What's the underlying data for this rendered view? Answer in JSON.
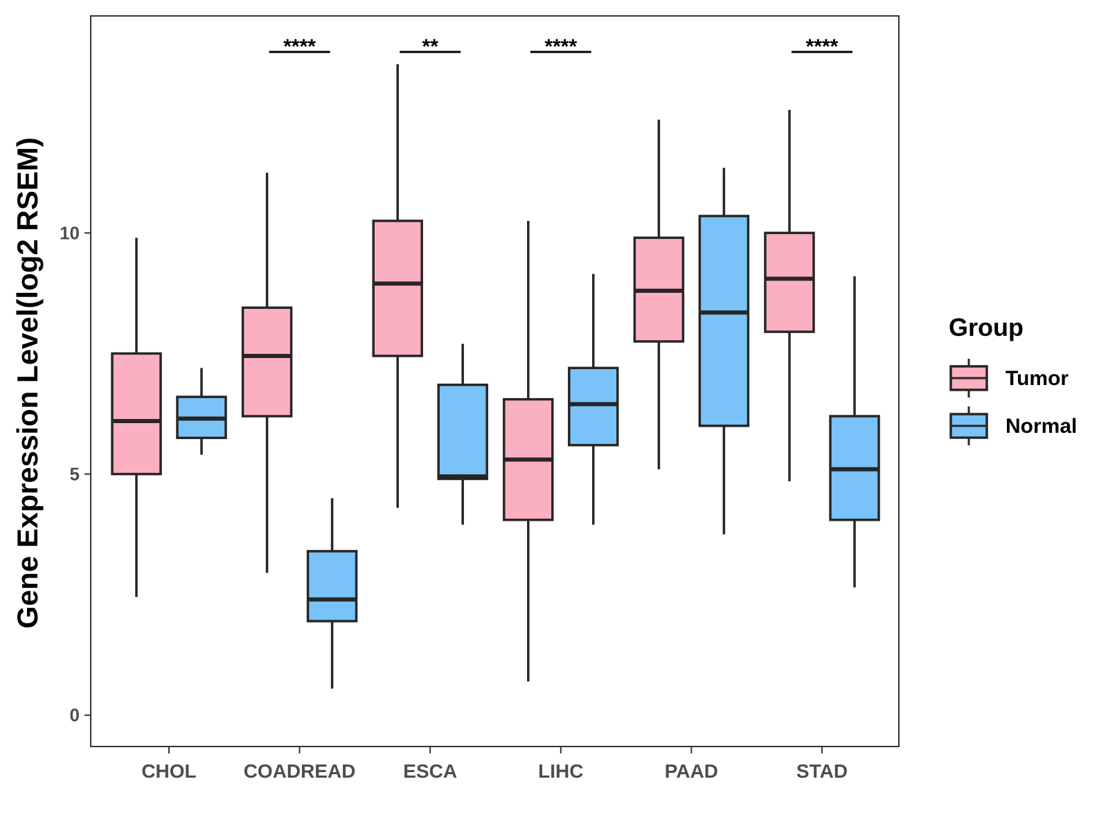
{
  "chart_data": {
    "type": "boxplot",
    "ylabel": "Gene Expression Level(log2 RSEM)",
    "xlabel": "",
    "ylim": [
      -0.65,
      14.5
    ],
    "yticks": [
      0,
      5,
      10
    ],
    "categories": [
      "CHOL",
      "COADREAD",
      "ESCA",
      "LIHC",
      "PAAD",
      "STAD"
    ],
    "legend": {
      "title": "Group",
      "position": "right",
      "entries": [
        {
          "name": "Tumor",
          "color": "#FBB0C2"
        },
        {
          "name": "Normal",
          "color": "#7AC3F8"
        }
      ]
    },
    "series": [
      {
        "name": "Tumor",
        "color": "#FBB0C2",
        "boxes": [
          {
            "category": "CHOL",
            "min": 2.45,
            "q1": 5.0,
            "median": 6.1,
            "q3": 7.5,
            "max": 9.9
          },
          {
            "category": "COADREAD",
            "min": 2.95,
            "q1": 6.2,
            "median": 7.45,
            "q3": 8.45,
            "max": 11.25
          },
          {
            "category": "ESCA",
            "min": 4.3,
            "q1": 7.45,
            "median": 8.95,
            "q3": 10.25,
            "max": 13.5
          },
          {
            "category": "LIHC",
            "min": 0.7,
            "q1": 4.05,
            "median": 5.3,
            "q3": 6.55,
            "max": 10.25
          },
          {
            "category": "PAAD",
            "min": 5.1,
            "q1": 7.75,
            "median": 8.8,
            "q3": 9.9,
            "max": 12.35
          },
          {
            "category": "STAD",
            "min": 4.85,
            "q1": 7.95,
            "median": 9.05,
            "q3": 10.0,
            "max": 12.55
          }
        ]
      },
      {
        "name": "Normal",
        "color": "#7AC3F8",
        "boxes": [
          {
            "category": "CHOL",
            "min": 5.4,
            "q1": 5.75,
            "median": 6.15,
            "q3": 6.6,
            "max": 7.2
          },
          {
            "category": "COADREAD",
            "min": 0.55,
            "q1": 1.95,
            "median": 2.4,
            "q3": 3.4,
            "max": 4.5
          },
          {
            "category": "ESCA",
            "min": 3.95,
            "q1": 4.9,
            "median": 4.95,
            "q3": 6.85,
            "max": 7.7
          },
          {
            "category": "LIHC",
            "min": 3.95,
            "q1": 5.6,
            "median": 6.45,
            "q3": 7.2,
            "max": 9.15
          },
          {
            "category": "PAAD",
            "min": 3.75,
            "q1": 6.0,
            "median": 8.35,
            "q3": 10.35,
            "max": 11.35
          },
          {
            "category": "STAD",
            "min": 2.65,
            "q1": 4.05,
            "median": 5.1,
            "q3": 6.2,
            "max": 9.1
          }
        ]
      }
    ],
    "significance": [
      {
        "category": "COADREAD",
        "label": "****"
      },
      {
        "category": "ESCA",
        "label": "**"
      },
      {
        "category": "LIHC",
        "label": "****"
      },
      {
        "category": "STAD",
        "label": "****"
      }
    ]
  }
}
